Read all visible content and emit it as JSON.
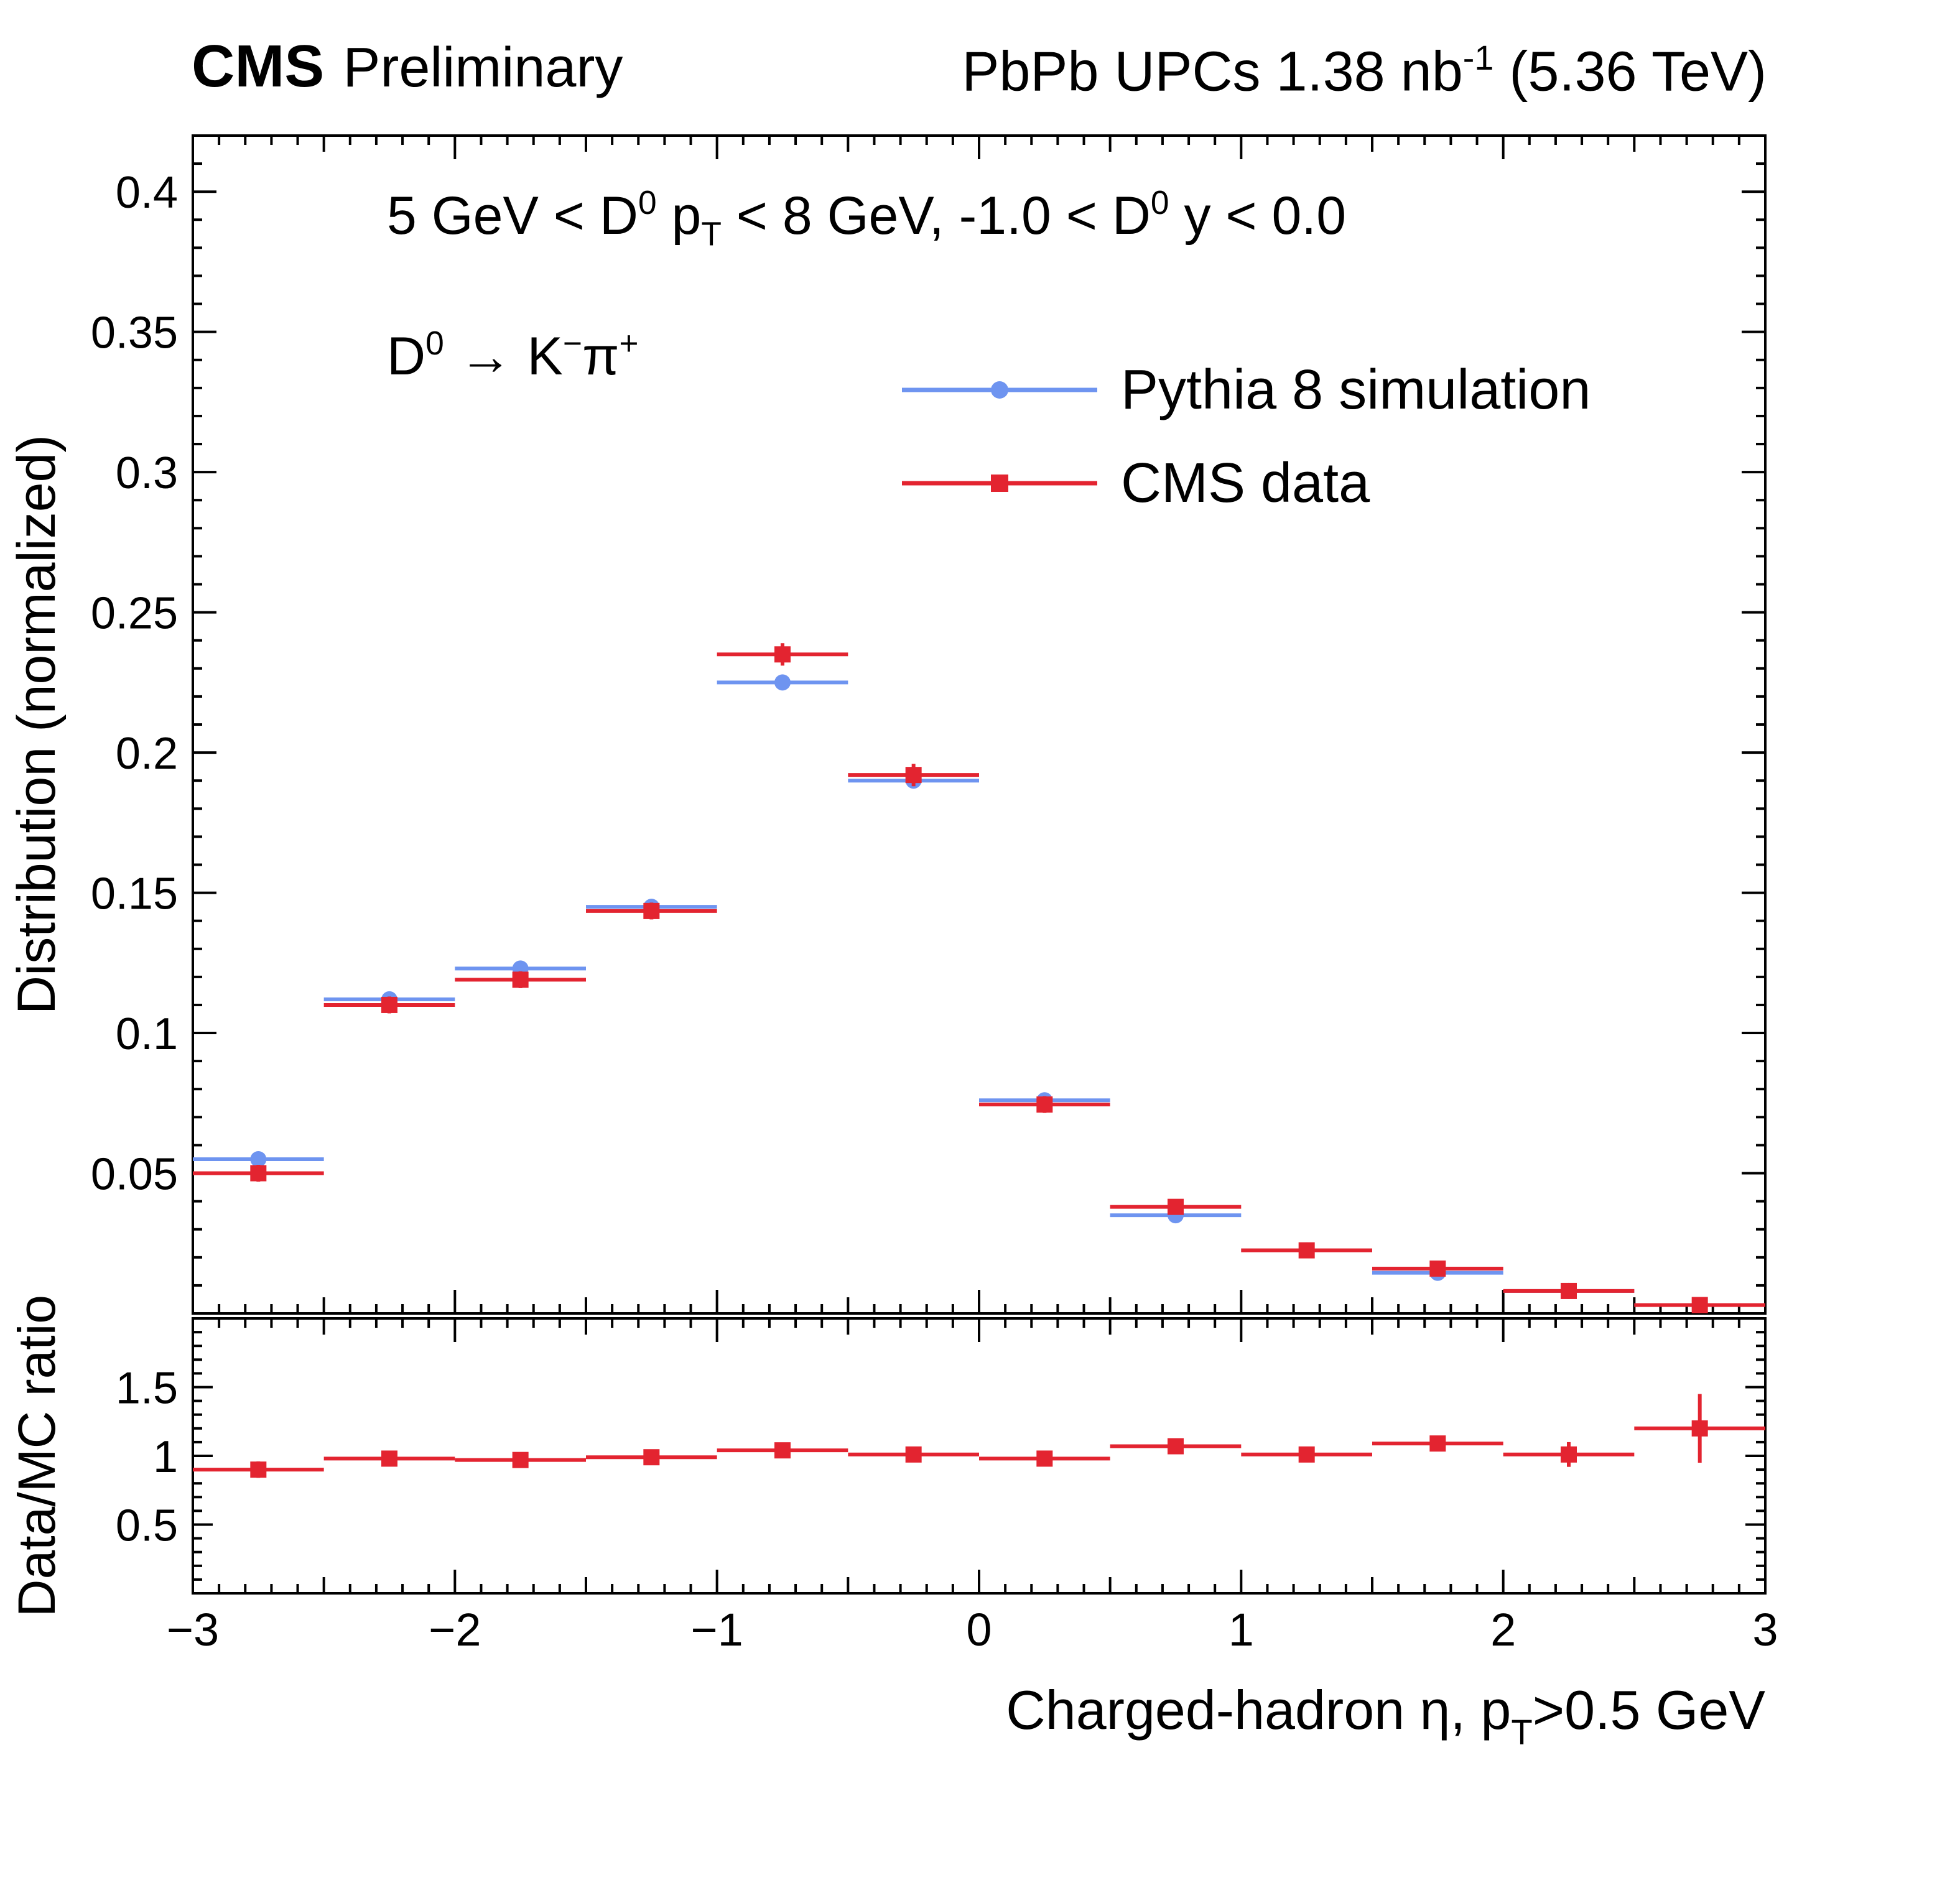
{
  "header": {
    "experiment": "CMS",
    "label": "Preliminary",
    "lumi": [
      {
        "t": "PbPb UPCs 1.38 nb"
      },
      {
        "t": "-1",
        "sup": true
      },
      {
        "t": " (5.36 TeV)"
      }
    ]
  },
  "annotations": {
    "kinematics": [
      {
        "t": "5 GeV < D"
      },
      {
        "t": "0",
        "sup": true
      },
      {
        "t": " p"
      },
      {
        "t": "T",
        "sub": true
      },
      {
        "t": " < 8 GeV, -1.0 < D"
      },
      {
        "t": "0",
        "sup": true
      },
      {
        "t": " y < 0.0"
      }
    ],
    "decay": [
      {
        "t": "D"
      },
      {
        "t": "0",
        "sup": true
      },
      {
        "t": " → K"
      },
      {
        "t": "−",
        "sup": true
      },
      {
        "t": "π"
      },
      {
        "t": "+",
        "sup": true
      }
    ]
  },
  "chart_data": {
    "type": "scatter",
    "title": "",
    "ylabel": "Distribution (normalized)",
    "ratio_ylabel": "Data/MC ratio",
    "xlabel_segments": [
      {
        "t": "Charged-hadron η, p"
      },
      {
        "t": "T",
        "sub": true
      },
      {
        "t": ">0.5 GeV"
      }
    ],
    "xlim": [
      -3,
      3
    ],
    "ylim": [
      0,
      0.42
    ],
    "ratio_ylim": [
      0,
      2
    ],
    "xticks": [
      -3,
      -2,
      -1,
      0,
      1,
      2,
      3
    ],
    "xtick_labels": [
      "−3",
      "−2",
      "−1",
      "0",
      "1",
      "2",
      "3"
    ],
    "yticks": [
      0.05,
      0.1,
      0.15,
      0.2,
      0.25,
      0.3,
      0.35,
      0.4
    ],
    "ytick_labels": [
      "0.05",
      "0.1",
      "0.15",
      "0.2",
      "0.25",
      "0.3",
      "0.35",
      "0.4"
    ],
    "ratio_yticks": [
      0.5,
      1,
      1.5
    ],
    "ratio_ytick_labels": [
      "0.5",
      "1",
      "1.5"
    ],
    "x_minor_step": 0.1,
    "y_minor_step": 0.01,
    "ratio_y_minor_step": 0.1,
    "bin_half_width": 0.25,
    "grid": false,
    "legend_position": "upper-right-inside",
    "x": [
      -2.75,
      -2.25,
      -1.75,
      -1.25,
      -0.75,
      -0.25,
      0.25,
      0.75,
      1.25,
      1.75,
      2.25,
      2.75
    ],
    "series": [
      {
        "name": "Pythia 8 simulation",
        "marker": "circle",
        "color": "#6e94f0",
        "values": [
          0.055,
          0.112,
          0.123,
          0.145,
          0.225,
          0.19,
          0.076,
          0.035,
          0.0225,
          0.0145,
          0.008,
          0.003
        ],
        "errors": [
          0.001,
          0.001,
          0.001,
          0.001,
          0.0015,
          0.0015,
          0.001,
          0.0008,
          0.0006,
          0.0005,
          0.0004,
          0.0003
        ]
      },
      {
        "name": "CMS data",
        "marker": "square",
        "color": "#e32430",
        "values": [
          0.05,
          0.11,
          0.119,
          0.1435,
          0.235,
          0.192,
          0.0745,
          0.038,
          0.0225,
          0.016,
          0.008,
          0.003
        ],
        "errors": [
          0.003,
          0.003,
          0.003,
          0.003,
          0.004,
          0.004,
          0.003,
          0.002,
          0.0015,
          0.0013,
          0.001,
          0.001
        ]
      }
    ],
    "ratio_series": {
      "name": "Data/MC",
      "marker": "square",
      "color": "#e32430",
      "values": [
        0.9,
        0.98,
        0.97,
        0.99,
        1.04,
        1.01,
        0.98,
        1.07,
        1.01,
        1.09,
        1.01,
        1.2
      ],
      "errors": [
        0.06,
        0.03,
        0.03,
        0.03,
        0.03,
        0.03,
        0.03,
        0.04,
        0.04,
        0.05,
        0.09,
        0.25
      ]
    }
  }
}
